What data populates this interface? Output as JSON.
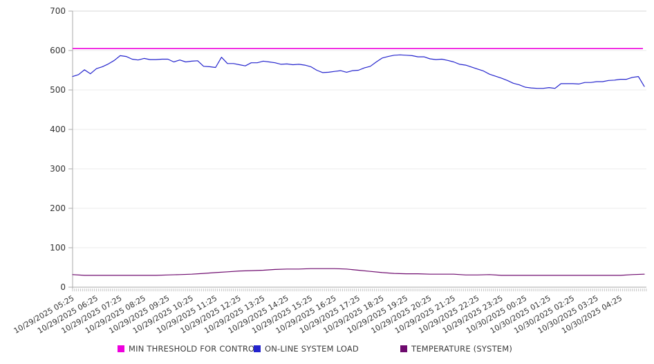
{
  "chart_data": {
    "type": "line",
    "title": "",
    "xlabel": "",
    "ylabel": "",
    "ylim": [
      0,
      700
    ],
    "y_ticks": [
      0,
      100,
      200,
      300,
      400,
      500,
      600,
      700
    ],
    "grid": true,
    "legend_position": "bottom",
    "x_minor_ticks_per_hour": 12,
    "x_labels": [
      "10/29/2025 05:25",
      "10/29/2025 06:25",
      "10/29/2025 07:25",
      "10/29/2025 08:25",
      "10/29/2025 09:25",
      "10/29/2025 10:25",
      "10/29/2025 11:25",
      "10/29/2025 12:25",
      "10/29/2025 13:25",
      "10/29/2025 14:25",
      "10/29/2025 15:25",
      "10/29/2025 16:25",
      "10/29/2025 17:25",
      "10/29/2025 18:25",
      "10/29/2025 19:25",
      "10/29/2025 20:25",
      "10/29/2025 21:25",
      "10/29/2025 22:25",
      "10/29/2025 23:25",
      "10/30/2025 00:25",
      "10/30/2025 01:25",
      "10/30/2025 02:25",
      "10/30/2025 03:25",
      "10/30/2025 04:25"
    ],
    "series": [
      {
        "id": "min-threshold",
        "name": "MIN THRESHOLD FOR CONTROL",
        "color": "#ee00dd",
        "kind": "constant",
        "value": 605
      },
      {
        "id": "on-line-system-load",
        "name": "ON-LINE SYSTEM LOAD",
        "color": "#2323cd",
        "kind": "line",
        "points_per_hour": 4,
        "values": [
          534,
          539,
          551,
          541,
          554,
          559,
          566,
          575,
          587,
          585,
          578,
          576,
          580,
          577,
          577,
          578,
          578,
          571,
          576,
          571,
          573,
          574,
          560,
          559,
          557,
          583,
          567,
          567,
          564,
          561,
          569,
          569,
          573,
          571,
          569,
          565,
          566,
          564,
          565,
          563,
          559,
          550,
          544,
          545,
          547,
          549,
          545,
          549,
          550,
          556,
          560,
          571,
          581,
          585,
          588,
          589,
          588,
          587,
          584,
          584,
          579,
          577,
          578,
          575,
          571,
          565,
          563,
          558,
          553,
          548,
          540,
          535,
          530,
          524,
          517,
          513,
          507,
          505,
          504,
          504,
          506,
          504,
          516,
          516,
          516,
          515,
          519,
          519,
          521,
          521,
          524,
          525,
          527,
          527,
          532,
          534,
          509
        ]
      },
      {
        "id": "temperature-system",
        "name": "TEMPERATURE (SYSTEM)",
        "color": "#6e0a6e",
        "kind": "line",
        "points_per_hour": 2,
        "values": [
          32,
          30,
          30,
          30,
          30,
          30,
          30,
          30,
          31,
          32,
          33,
          35,
          37,
          39,
          41,
          42,
          43,
          45,
          46,
          46,
          47,
          47,
          47,
          46,
          43,
          40,
          37,
          35,
          34,
          34,
          33,
          33,
          33,
          31,
          31,
          32,
          30,
          30,
          30,
          30,
          30,
          30,
          30,
          30,
          30,
          30,
          30,
          32,
          33
        ]
      }
    ]
  },
  "colors": {
    "background": "#ffffff",
    "gridline": "#ebebeb",
    "gridline_top": "#d7d7d7",
    "axis": "#aaaaaa",
    "minor_tick": "#c5c5c5",
    "tick_label": "#333333"
  }
}
